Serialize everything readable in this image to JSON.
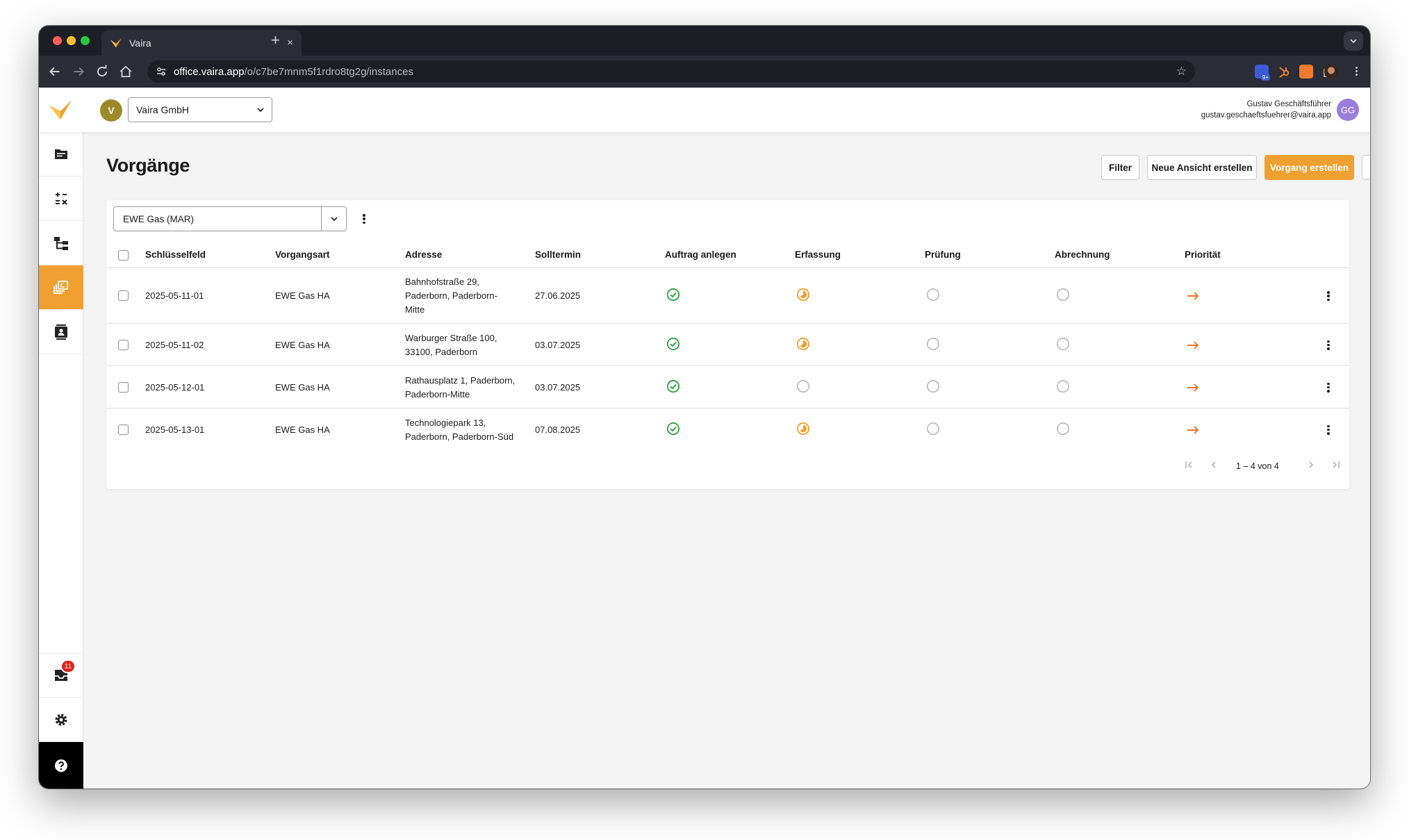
{
  "browser": {
    "tab_title": "Vaira",
    "tab_close": "×",
    "new_tab": "+",
    "url_host": "office.vaira.app",
    "url_path": "/o/c7be7mnm5f1rdro8tg2g/instances",
    "ext_badge": "9+"
  },
  "header": {
    "org_avatar": "V",
    "org_name": "Vaira GmbH",
    "user_name": "Gustav Geschäftsführer",
    "user_email": "gustav.geschaeftsfuehrer@vaira.app",
    "user_initials": "GG"
  },
  "sidebar": {
    "items": [
      {
        "icon": "folder-icon"
      },
      {
        "icon": "calculation-icon"
      },
      {
        "icon": "hierarchy-icon"
      },
      {
        "icon": "instances-icon",
        "active": true
      },
      {
        "icon": "contacts-icon"
      }
    ],
    "inbox_badge": "11"
  },
  "page": {
    "title": "Vorgänge",
    "filter_label": "Filter",
    "new_view_label": "Neue Ansicht erstellen",
    "create_label": "Vorgang erstellen"
  },
  "view": {
    "selected": "EWE Gas (MAR)"
  },
  "table": {
    "columns": [
      "Schlüsselfeld",
      "Vorgangsart",
      "Adresse",
      "Solltermin",
      "Auftrag anlegen",
      "Erfassung",
      "Prüfung",
      "Abrechnung",
      "Priorität"
    ],
    "rows": [
      {
        "key": "2025-05-11-01",
        "type": "EWE Gas HA",
        "address": [
          "Bahnhofstraße 29,",
          "Paderborn, Paderborn-",
          "Mitte"
        ],
        "date": "27.06.2025",
        "auftrag": "done",
        "erfassung": "in-progress",
        "pruefung": "open",
        "abrechnung": "open",
        "priority": "normal"
      },
      {
        "key": "2025-05-11-02",
        "type": "EWE Gas HA",
        "address": [
          "Warburger Straße 100,",
          "33100, Paderborn"
        ],
        "date": "03.07.2025",
        "auftrag": "done",
        "erfassung": "in-progress",
        "pruefung": "open",
        "abrechnung": "open",
        "priority": "normal"
      },
      {
        "key": "2025-05-12-01",
        "type": "EWE Gas HA",
        "address": [
          "Rathausplatz 1, Paderborn,",
          "Paderborn-Mitte"
        ],
        "date": "03.07.2025",
        "auftrag": "done",
        "erfassung": "open",
        "pruefung": "open",
        "abrechnung": "open",
        "priority": "normal"
      },
      {
        "key": "2025-05-13-01",
        "type": "EWE Gas HA",
        "address": [
          "Technologiepark 13,",
          "Paderborn, Paderborn-Süd"
        ],
        "date": "07.08.2025",
        "auftrag": "done",
        "erfassung": "in-progress",
        "pruefung": "open",
        "abrechnung": "open",
        "priority": "normal"
      }
    ]
  },
  "pagination": {
    "range": "1 – 4 von 4"
  },
  "colors": {
    "accent": "#f0a030",
    "success": "#2e9e3e",
    "priority": "#e8742a"
  }
}
